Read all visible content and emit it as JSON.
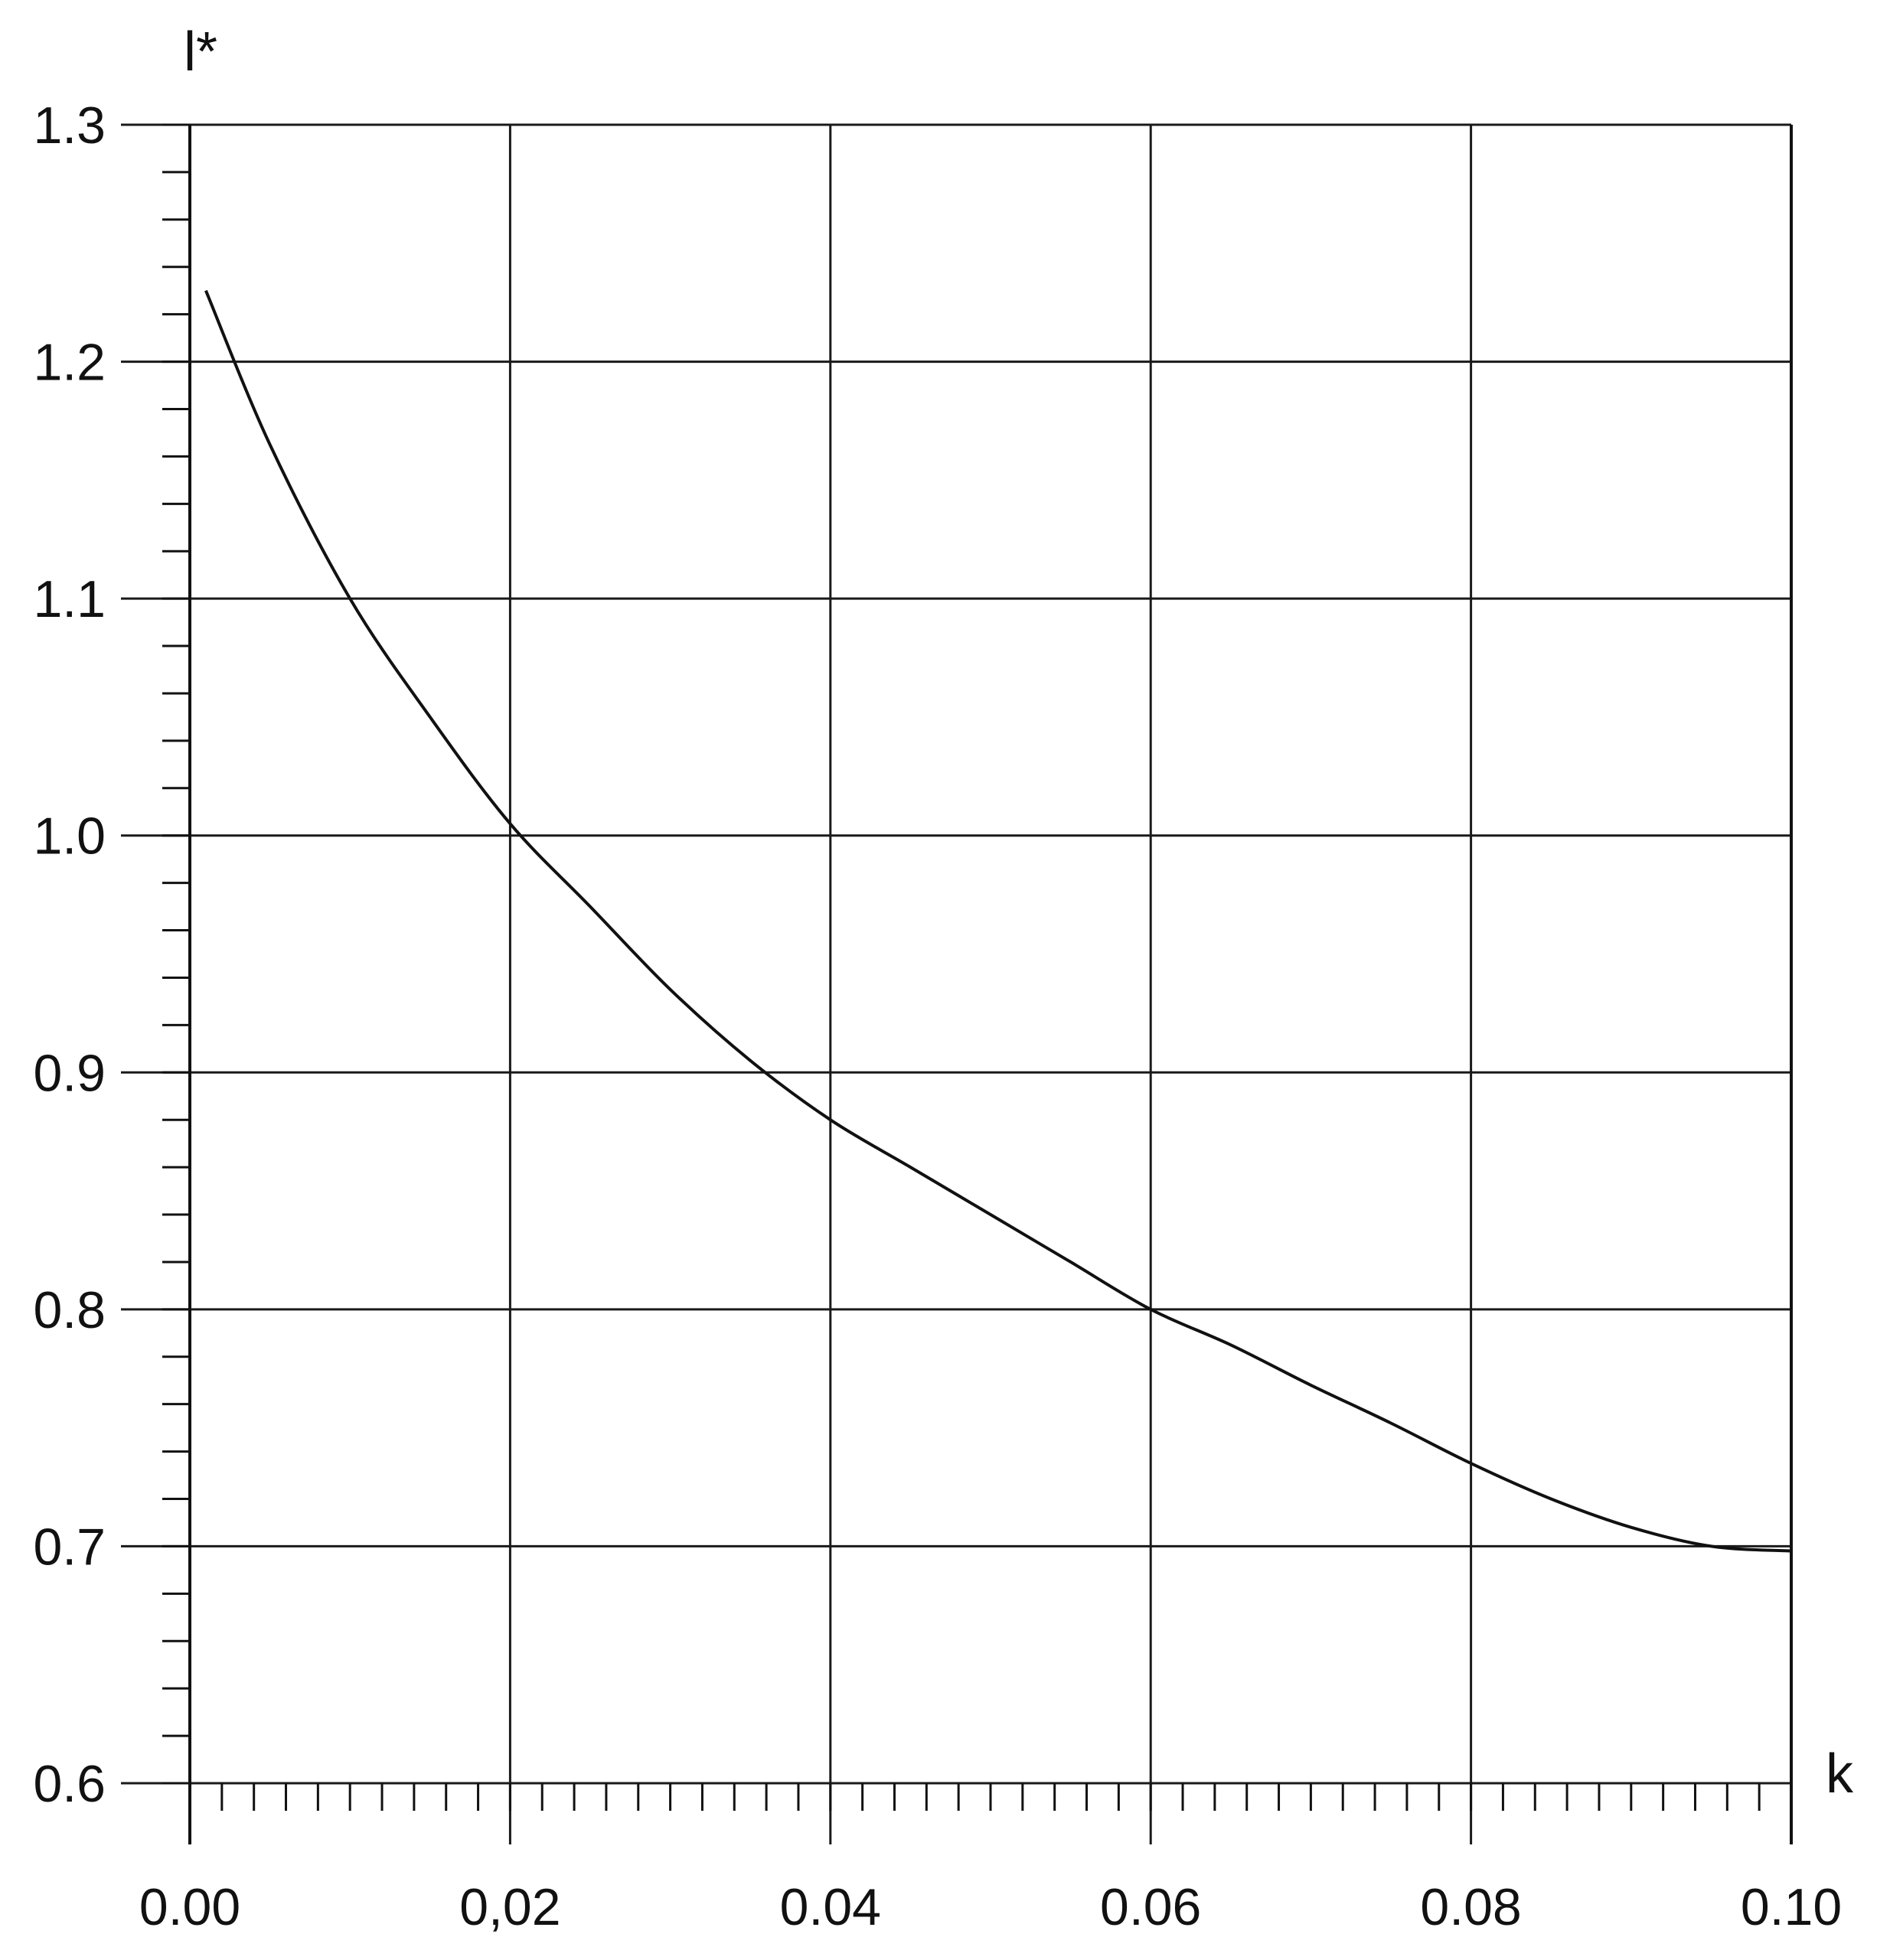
{
  "chart_data": {
    "type": "line",
    "title": "",
    "xlabel": "k",
    "ylabel": "l*",
    "xlim": [
      0.0,
      0.1
    ],
    "ylim": [
      0.6,
      1.3
    ],
    "grid": true,
    "legend": "none",
    "xticks": [
      0.0,
      0.02,
      0.04,
      0.06,
      0.08,
      0.1
    ],
    "yticks": [
      0.6,
      0.7,
      0.8,
      0.9,
      1.0,
      1.1,
      1.2,
      1.3
    ],
    "xtick_labels": [
      "0.00",
      "0,02",
      "0.04",
      "0.06",
      "0.08",
      "0.10"
    ],
    "ytick_labels": [
      "0.6",
      "0.7",
      "0.8",
      "0.9",
      "1.0",
      "1.1",
      "1.2",
      "1.3"
    ],
    "x_minor_step": 0.002,
    "y_minor_step": 0.02,
    "series": [
      {
        "x": [
          0.001,
          0.005,
          0.01,
          0.015,
          0.02,
          0.025,
          0.03,
          0.035,
          0.04,
          0.045,
          0.05,
          0.055,
          0.06,
          0.065,
          0.07,
          0.075,
          0.08,
          0.085,
          0.09,
          0.095,
          0.1
        ],
        "y": [
          1.23,
          1.165,
          1.1,
          1.05,
          1.005,
          0.97,
          0.935,
          0.905,
          0.88,
          0.86,
          0.84,
          0.82,
          0.8,
          0.785,
          0.768,
          0.752,
          0.735,
          0.72,
          0.708,
          0.7,
          0.698
        ]
      }
    ],
    "colors": {
      "line": "#111111",
      "grid": "#1a1a1a",
      "background": "#ffffff"
    }
  }
}
